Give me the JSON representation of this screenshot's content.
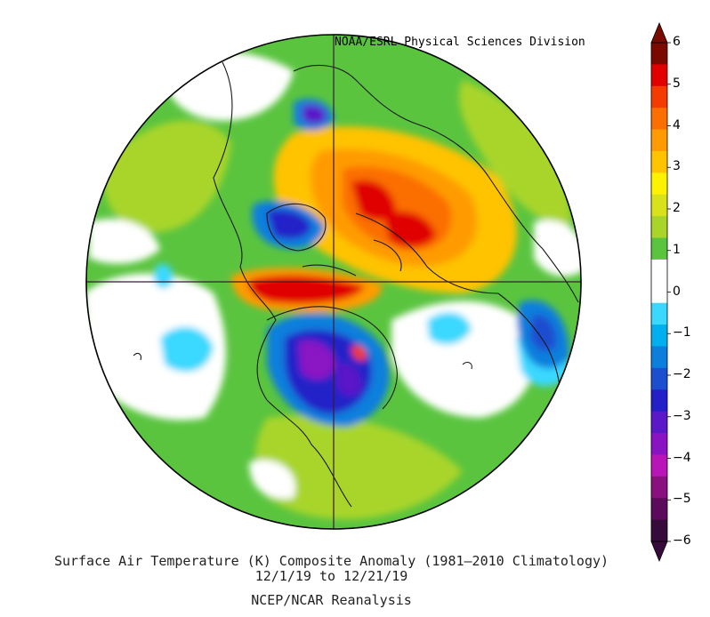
{
  "credit": "NOAA/ESRL Physical Sciences Division",
  "title": {
    "line1": "Surface Air Temperature (K) Composite Anomaly (1981–2010 Climatology)",
    "line2": "12/1/19  to 12/21/19",
    "line3": "NCEP/NCAR Reanalysis"
  },
  "colorbar": {
    "labels": [
      "6",
      "5",
      "4",
      "3",
      "2",
      "1",
      "0",
      "−1",
      "−2",
      "−3",
      "−4",
      "−5",
      "−6"
    ],
    "colors": [
      "#7a0a00",
      "#e00000",
      "#f43b00",
      "#fb6e00",
      "#ff9b00",
      "#ffc300",
      "#fff200",
      "#d7e21b",
      "#a9d52a",
      "#5ac43f",
      "#ffffff",
      "#ffffff",
      "#3ad8ff",
      "#00b0ee",
      "#0c7fdd",
      "#1c4ed0",
      "#2420c8",
      "#5a18c8",
      "#8a14c4",
      "#b814b8",
      "#8a1080",
      "#5c0a5c",
      "#360a3a"
    ]
  },
  "map": {
    "projection": "north-polar-stereographic",
    "field": "surface air temperature anomaly",
    "units": "K"
  }
}
